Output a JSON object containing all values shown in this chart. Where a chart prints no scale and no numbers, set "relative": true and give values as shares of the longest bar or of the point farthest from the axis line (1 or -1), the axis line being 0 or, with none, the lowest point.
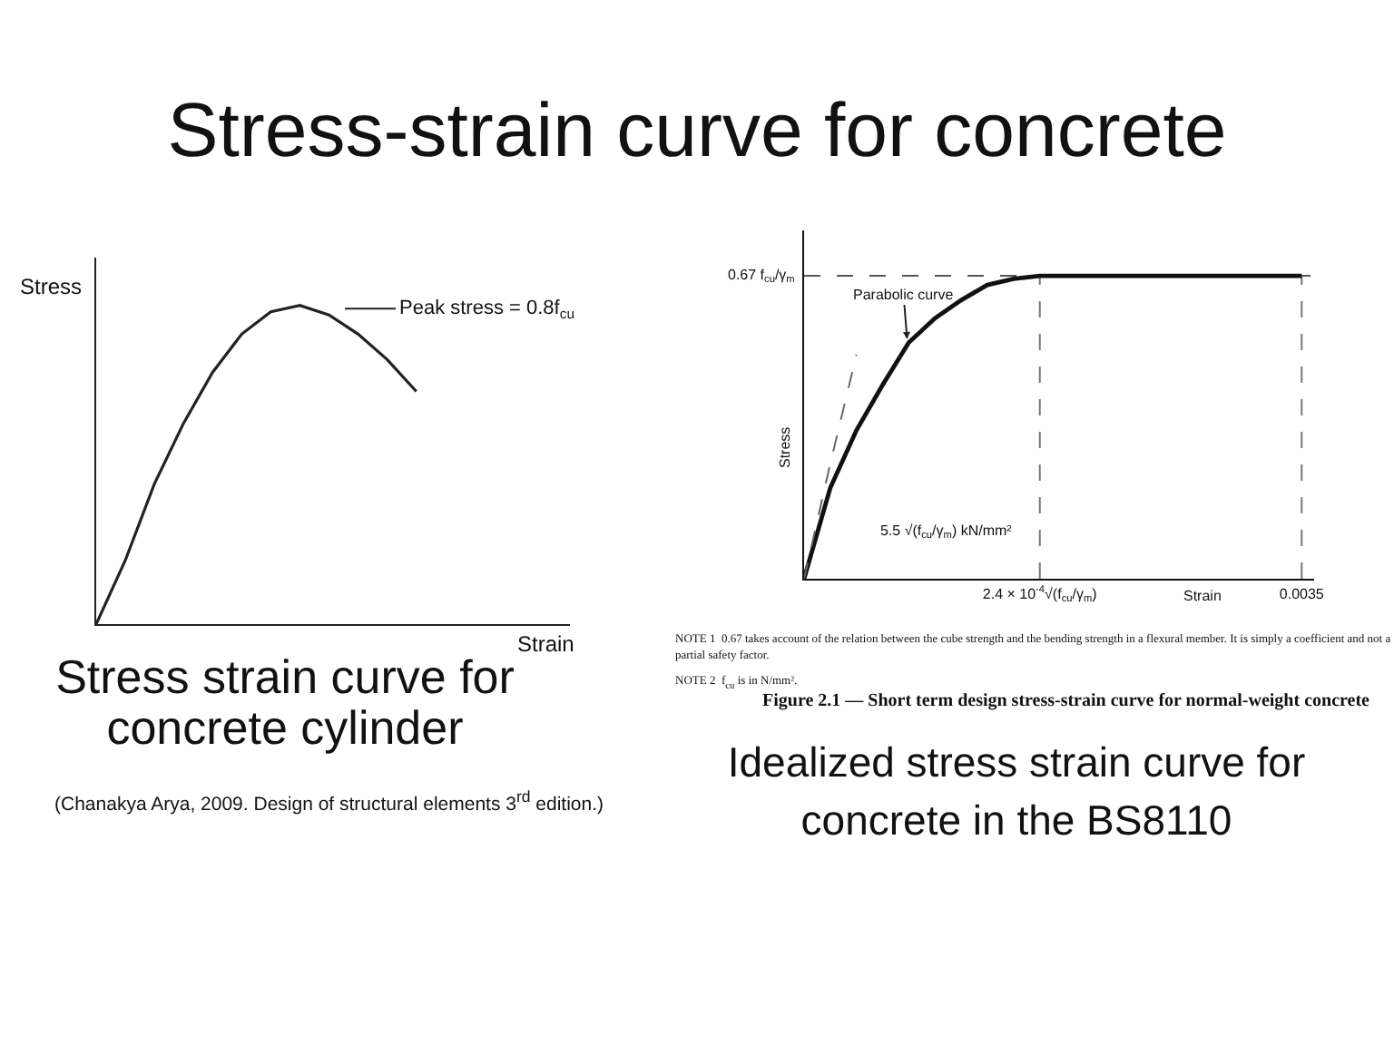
{
  "chart_data": [
    {
      "type": "other",
      "title": "Stress-strain curve for concrete"
    },
    {
      "type": "line",
      "relative": true,
      "categories": [
        null,
        null,
        null,
        null,
        null,
        null,
        null,
        null,
        null,
        null,
        null,
        null
      ],
      "values": [
        0,
        0.2,
        0.44,
        0.63,
        0.79,
        0.91,
        0.98,
        1,
        0.97,
        0.91,
        0.83,
        0.73
      ],
      "color": "#222222",
      "xlabel": "Strain",
      "ylabel": "Stress",
      "tick_labels": false,
      "annotations": [
        "Peak stress = 0.8f$_{cu}$",
        "Stress strain curve for concrete cylinder",
        "(Chanakya Arya, 2009. Design of structural elements 3$^{rd}$ edition.)"
      ]
    },
    {
      "type": "line",
      "relative": true,
      "categories": [
        null,
        null,
        null,
        null,
        null,
        null,
        null,
        null,
        null,
        "2.4 × 10$^{-4}$√(f$_{cu}$/γ$_{m}$)",
        null,
        null,
        null,
        null,
        null,
        null,
        null,
        null,
        null,
        "0.0035"
      ],
      "series": [
        {
          "values": [
            0,
            0.3,
            0.49,
            0.64,
            0.78,
            0.86,
            0.92,
            0.97,
            0.99,
            1,
            1,
            1,
            1,
            1,
            1,
            1,
            1,
            1,
            1,
            1
          ],
          "color": "#111111"
        },
        {
          "values": [
            0,
            0.38,
            0.74,
            null,
            null,
            null,
            null,
            null,
            null,
            null,
            null,
            null,
            null,
            null,
            null,
            null,
            null,
            null,
            null,
            null
          ],
          "color": "#666666",
          "line_style": "dashed"
        }
      ],
      "ref_lines": [
        {
          "axis": "y",
          "value": 1,
          "label": "0.67 f$_{cu}$/γ$_{m}$",
          "color": "#555555",
          "line_style": "dashed"
        },
        {
          "axis": "x",
          "value": "2.4 × 10$^{-4}$√(f$_{cu}$/γ$_{m}$)",
          "color": "#777777",
          "line_style": "dashed"
        },
        {
          "axis": "x",
          "value": "0.0035",
          "color": "#777777",
          "line_style": "dashed"
        }
      ],
      "xlabel": "Strain",
      "ylabel": "Stress",
      "tick_labels": "x",
      "annotations": [
        "Parabolic curve",
        "5.5 √(f$_{cu}$/γ$_{m}$) kN/mm²",
        "NOTE 1  0.67 takes account of the relation between the cube strength and the bending strength in a flexural member. It is simply a coefficient and not a partial safety factor.",
        "NOTE 2  f$_{cu}$ is in N/mm².",
        "Figure 2.1 — Short term design stress-strain curve for normal-weight concrete",
        "Idealized stress strain curve for concrete in the BS8110"
      ]
    }
  ]
}
